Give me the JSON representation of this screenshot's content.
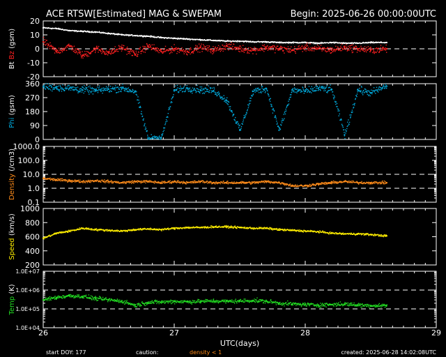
{
  "chart_data": {
    "type": "scatter",
    "title": "ACE RTSW[Estimated] MAG & SWEPAM",
    "begin_label": "Begin: 2025-06-26 00:00:00UTC",
    "xlabel": "UTC(days)",
    "x_ticks": [
      "26",
      "27",
      "28",
      "29"
    ],
    "xlim": [
      26,
      29
    ],
    "data_end_day": 28.62,
    "footer": {
      "start_doy": "start DOY: 177",
      "caution": "caution:",
      "caution_note": "density < 1",
      "created": "created: 2025-06-28 14:02:08UTC"
    },
    "colors": {
      "bt": "#ffffff",
      "bz": "#ff2020",
      "phi": "#00aadd",
      "density": "#ff8c1a",
      "speed": "#ffee00",
      "temp": "#22dd22",
      "axes": "#ffffff",
      "caution": "#ff8c1a"
    },
    "panels": [
      {
        "id": "mag",
        "ylabel_parts": [
          {
            "text": "Bt",
            "color": "#ffffff"
          },
          {
            "text": "Bz",
            "color": "#ff2020"
          },
          {
            "text": "(gsm)",
            "color": "#ffffff"
          }
        ],
        "scale": "linear",
        "ylim": [
          -20,
          20
        ],
        "y_ticks": [
          "-20",
          "-10",
          "0",
          "10",
          "20"
        ],
        "dashed_lines": [
          0
        ],
        "series": [
          {
            "name": "Bt",
            "color_key": "bt",
            "points": [
              [
                26.0,
                15
              ],
              [
                26.1,
                14.5
              ],
              [
                26.2,
                13
              ],
              [
                26.3,
                12.5
              ],
              [
                26.4,
                12
              ],
              [
                26.5,
                11
              ],
              [
                26.6,
                10
              ],
              [
                26.7,
                9.5
              ],
              [
                26.8,
                9
              ],
              [
                26.9,
                8
              ],
              [
                27.0,
                7.5
              ],
              [
                27.1,
                7
              ],
              [
                27.2,
                6.5
              ],
              [
                27.3,
                6
              ],
              [
                27.4,
                5.5
              ],
              [
                27.5,
                5.5
              ],
              [
                27.6,
                5
              ],
              [
                27.7,
                5
              ],
              [
                27.8,
                4.5
              ],
              [
                27.9,
                4.5
              ],
              [
                28.0,
                4.5
              ],
              [
                28.1,
                4
              ],
              [
                28.2,
                4.5
              ],
              [
                28.3,
                4
              ],
              [
                28.4,
                4
              ],
              [
                28.5,
                4.5
              ],
              [
                28.62,
                4.5
              ]
            ]
          },
          {
            "name": "Bz",
            "color_key": "bz",
            "points": [
              [
                26.0,
                5
              ],
              [
                26.1,
                -2
              ],
              [
                26.2,
                2
              ],
              [
                26.3,
                -5
              ],
              [
                26.4,
                0
              ],
              [
                26.5,
                -3
              ],
              [
                26.6,
                1
              ],
              [
                26.7,
                -4
              ],
              [
                26.8,
                2
              ],
              [
                26.9,
                -2
              ],
              [
                27.0,
                0
              ],
              [
                27.1,
                -2
              ],
              [
                27.2,
                1
              ],
              [
                27.3,
                -1
              ],
              [
                27.4,
                2
              ],
              [
                27.5,
                0
              ],
              [
                27.6,
                -1
              ],
              [
                27.7,
                1
              ],
              [
                27.8,
                0
              ],
              [
                27.9,
                -1
              ],
              [
                28.0,
                1
              ],
              [
                28.1,
                0
              ],
              [
                28.2,
                -1
              ],
              [
                28.3,
                1
              ],
              [
                28.4,
                0
              ],
              [
                28.5,
                -1
              ],
              [
                28.62,
                0
              ]
            ]
          }
        ]
      },
      {
        "id": "phi",
        "ylabel_parts": [
          {
            "text": "Phi",
            "color": "#00aadd"
          },
          {
            "text": "(gsm)",
            "color": "#ffffff"
          }
        ],
        "scale": "linear",
        "ylim": [
          0,
          360
        ],
        "y_ticks": [
          "0",
          "90",
          "180",
          "270",
          "360"
        ],
        "dashed_lines": [],
        "series": [
          {
            "name": "Phi",
            "color_key": "phi",
            "points": [
              [
                26.0,
                340
              ],
              [
                26.1,
                335
              ],
              [
                26.2,
                330
              ],
              [
                26.3,
                320
              ],
              [
                26.4,
                315
              ],
              [
                26.5,
                325
              ],
              [
                26.6,
                330
              ],
              [
                26.7,
                310
              ],
              [
                26.8,
                5
              ],
              [
                26.9,
                10
              ],
              [
                27.0,
                320
              ],
              [
                27.1,
                330
              ],
              [
                27.2,
                320
              ],
              [
                27.3,
                315
              ],
              [
                27.4,
                250
              ],
              [
                27.5,
                60
              ],
              [
                27.6,
                310
              ],
              [
                27.7,
                330
              ],
              [
                27.8,
                60
              ],
              [
                27.9,
                320
              ],
              [
                28.0,
                310
              ],
              [
                28.1,
                330
              ],
              [
                28.2,
                320
              ],
              [
                28.3,
                30
              ],
              [
                28.4,
                320
              ],
              [
                28.5,
                300
              ],
              [
                28.62,
                345
              ]
            ]
          }
        ]
      },
      {
        "id": "density",
        "ylabel_parts": [
          {
            "text": "Density",
            "color": "#ff8c1a"
          },
          {
            "text": "(/cm3)",
            "color": "#ffffff"
          }
        ],
        "scale": "log",
        "ylim": [
          0.1,
          1000
        ],
        "y_ticks": [
          "0.1",
          "1.0",
          "10.0",
          "100.0",
          "1000.0"
        ],
        "dashed_lines": [
          1,
          10
        ],
        "series": [
          {
            "name": "Density",
            "color_key": "density",
            "points": [
              [
                26.0,
                5
              ],
              [
                26.1,
                4
              ],
              [
                26.2,
                3.5
              ],
              [
                26.3,
                3
              ],
              [
                26.4,
                3.5
              ],
              [
                26.5,
                3
              ],
              [
                26.6,
                2.5
              ],
              [
                26.7,
                3
              ],
              [
                26.8,
                3
              ],
              [
                26.9,
                2.5
              ],
              [
                27.0,
                3
              ],
              [
                27.1,
                2.5
              ],
              [
                27.2,
                3
              ],
              [
                27.3,
                2.5
              ],
              [
                27.4,
                2.5
              ],
              [
                27.5,
                2.5
              ],
              [
                27.6,
                2.5
              ],
              [
                27.7,
                3
              ],
              [
                27.8,
                2.5
              ],
              [
                27.9,
                1.5
              ],
              [
                28.0,
                1.5
              ],
              [
                28.1,
                2
              ],
              [
                28.2,
                2.5
              ],
              [
                28.3,
                3
              ],
              [
                28.4,
                2.5
              ],
              [
                28.5,
                2.5
              ],
              [
                28.62,
                2.5
              ]
            ]
          }
        ]
      },
      {
        "id": "speed",
        "ylabel_parts": [
          {
            "text": "Speed",
            "color": "#ffee00"
          },
          {
            "text": "(km/s)",
            "color": "#ffffff"
          }
        ],
        "scale": "linear",
        "ylim": [
          200,
          1000
        ],
        "y_ticks": [
          "200",
          "400",
          "600",
          "800",
          "1000"
        ],
        "dashed_lines": [],
        "series": [
          {
            "name": "Speed",
            "color_key": "speed",
            "points": [
              [
                26.0,
                580
              ],
              [
                26.1,
                650
              ],
              [
                26.2,
                680
              ],
              [
                26.3,
                720
              ],
              [
                26.4,
                700
              ],
              [
                26.5,
                690
              ],
              [
                26.6,
                680
              ],
              [
                26.7,
                700
              ],
              [
                26.8,
                710
              ],
              [
                26.9,
                700
              ],
              [
                27.0,
                720
              ],
              [
                27.1,
                730
              ],
              [
                27.2,
                730
              ],
              [
                27.3,
                740
              ],
              [
                27.4,
                740
              ],
              [
                27.5,
                730
              ],
              [
                27.6,
                720
              ],
              [
                27.7,
                720
              ],
              [
                27.8,
                700
              ],
              [
                27.9,
                690
              ],
              [
                28.0,
                680
              ],
              [
                28.1,
                670
              ],
              [
                28.2,
                650
              ],
              [
                28.3,
                640
              ],
              [
                28.4,
                640
              ],
              [
                28.5,
                630
              ],
              [
                28.62,
                610
              ]
            ]
          }
        ]
      },
      {
        "id": "temp",
        "ylabel_parts": [
          {
            "text": "Temp",
            "color": "#22dd22"
          },
          {
            "text": "(K)",
            "color": "#ffffff"
          }
        ],
        "scale": "log",
        "ylim": [
          10000,
          10000000
        ],
        "y_ticks": [
          "1.0E+04",
          "1.0E+05",
          "1.0E+06",
          "1.0E+07"
        ],
        "dashed_lines": [
          100000,
          1000000
        ],
        "series": [
          {
            "name": "Temp",
            "color_key": "temp",
            "points": [
              [
                26.0,
                300000
              ],
              [
                26.1,
                400000
              ],
              [
                26.2,
                500000
              ],
              [
                26.3,
                450000
              ],
              [
                26.4,
                350000
              ],
              [
                26.5,
                300000
              ],
              [
                26.6,
                250000
              ],
              [
                26.7,
                150000
              ],
              [
                26.8,
                220000
              ],
              [
                26.9,
                230000
              ],
              [
                27.0,
                250000
              ],
              [
                27.1,
                240000
              ],
              [
                27.2,
                250000
              ],
              [
                27.3,
                260000
              ],
              [
                27.4,
                250000
              ],
              [
                27.5,
                260000
              ],
              [
                27.6,
                280000
              ],
              [
                27.7,
                250000
              ],
              [
                27.8,
                200000
              ],
              [
                27.9,
                180000
              ],
              [
                28.0,
                170000
              ],
              [
                28.1,
                160000
              ],
              [
                28.2,
                170000
              ],
              [
                28.3,
                180000
              ],
              [
                28.4,
                160000
              ],
              [
                28.5,
                150000
              ],
              [
                28.62,
                150000
              ]
            ]
          }
        ]
      }
    ]
  }
}
